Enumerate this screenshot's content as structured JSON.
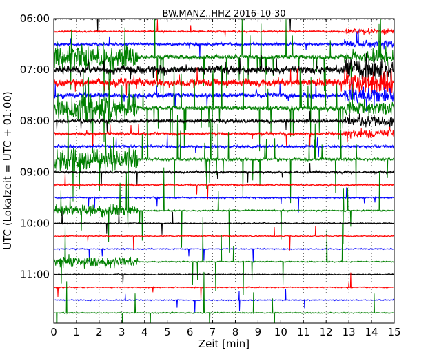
{
  "chart_data": {
    "type": "line",
    "title": "BW.MANZ..HHZ 2016-10-30",
    "xlabel": "Zeit  [min]",
    "ylabel": "UTC (Lokalzeit = UTC + 01:00)",
    "xlim": [
      0,
      15
    ],
    "xticks": [
      "0",
      "1",
      "2",
      "3",
      "4",
      "5",
      "6",
      "7",
      "8",
      "9",
      "10",
      "11",
      "12",
      "13",
      "14",
      "15"
    ],
    "y_tick_labels": [
      "06:00",
      "07:00",
      "08:00",
      "09:00",
      "10:00",
      "11:00"
    ],
    "y_tick_hours": [
      6,
      7,
      8,
      9,
      10,
      11
    ],
    "ylim_hours": [
      6.0,
      11.95
    ],
    "grid": true,
    "trace_colors": [
      "#000000",
      "#ff0000",
      "#0000ff",
      "#008000"
    ],
    "traces_start_hour": 6.0,
    "traces_step_hours": 0.25,
    "trace_count": 24,
    "trace_activity": [
      2,
      2,
      3,
      5,
      9,
      8,
      6,
      5,
      4,
      3,
      3,
      3,
      2.5,
      2,
      1.6,
      1.6,
      1.4,
      1.4,
      1.3,
      1.3,
      1.2,
      1.2,
      1.2,
      1.2
    ]
  }
}
